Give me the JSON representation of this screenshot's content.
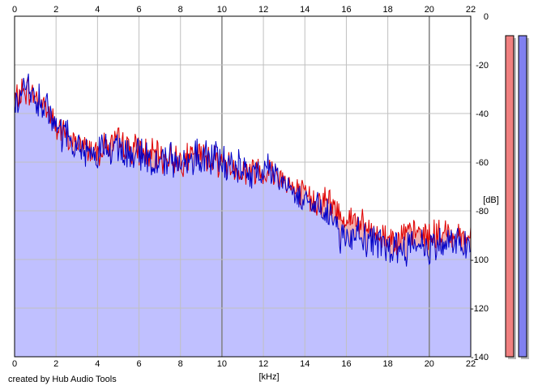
{
  "footer": {
    "credit": "created by Hub Audio Tools"
  },
  "colors": {
    "background": "#ffffff",
    "plot_border": "#000000",
    "grid_major": "#808080",
    "grid_minor": "#c0c0c0",
    "left_channel": "#e00000",
    "right_channel": "#0000c8",
    "left_fill": "#f0b0b0",
    "right_fill": "#c0c0ff",
    "left_meter": "#f08080",
    "right_meter": "#8080f0"
  },
  "chart_data": {
    "type": "area",
    "xlabel": "[kHz]",
    "ylabel": "[dB]",
    "xlim": [
      0,
      22
    ],
    "ylim": [
      -140,
      0
    ],
    "x_ticks": [
      "0",
      "2",
      "4",
      "6",
      "8",
      "10",
      "12",
      "14",
      "16",
      "18",
      "20",
      "22"
    ],
    "y_ticks": [
      "0",
      "-20",
      "-40",
      "-60",
      "-80",
      "-100",
      "-120",
      "-140"
    ],
    "grid": true,
    "series": [
      {
        "color": "#e00000",
        "points": [
          [
            0,
            -35
          ],
          [
            0.5,
            -30
          ],
          [
            1,
            -33
          ],
          [
            1.5,
            -37
          ],
          [
            2,
            -45
          ],
          [
            2.5,
            -50
          ],
          [
            3,
            -52
          ],
          [
            3.5,
            -54
          ],
          [
            4,
            -55
          ],
          [
            4.5,
            -53
          ],
          [
            5,
            -52
          ],
          [
            5.5,
            -54
          ],
          [
            6,
            -55
          ],
          [
            6.5,
            -57
          ],
          [
            7,
            -58
          ],
          [
            7.5,
            -58
          ],
          [
            8,
            -59
          ],
          [
            8.5,
            -58
          ],
          [
            9,
            -57
          ],
          [
            9.5,
            -58
          ],
          [
            10,
            -60
          ],
          [
            10.5,
            -62
          ],
          [
            11,
            -64
          ],
          [
            11.5,
            -63
          ],
          [
            12,
            -63
          ],
          [
            12.5,
            -64
          ],
          [
            13,
            -66
          ],
          [
            13.5,
            -72
          ],
          [
            14,
            -74
          ],
          [
            14.5,
            -76
          ],
          [
            15,
            -75
          ],
          [
            15.5,
            -80
          ],
          [
            16,
            -83
          ],
          [
            16.5,
            -84
          ],
          [
            17,
            -88
          ],
          [
            17.5,
            -90
          ],
          [
            18,
            -91
          ],
          [
            18.5,
            -91
          ],
          [
            19,
            -90
          ],
          [
            19.5,
            -89
          ],
          [
            20,
            -90
          ],
          [
            20.5,
            -90
          ],
          [
            21,
            -89
          ],
          [
            21.5,
            -90
          ],
          [
            22,
            -91
          ]
        ]
      },
      {
        "color": "#0000c8",
        "points": [
          [
            0,
            -37
          ],
          [
            0.5,
            -31
          ],
          [
            1,
            -34
          ],
          [
            1.5,
            -38
          ],
          [
            2,
            -46
          ],
          [
            2.5,
            -51
          ],
          [
            3,
            -53
          ],
          [
            3.5,
            -55
          ],
          [
            4,
            -56
          ],
          [
            4.5,
            -55
          ],
          [
            5,
            -54
          ],
          [
            5.5,
            -56
          ],
          [
            6,
            -57
          ],
          [
            6.5,
            -59
          ],
          [
            7,
            -60
          ],
          [
            7.5,
            -59
          ],
          [
            8,
            -60
          ],
          [
            8.5,
            -59
          ],
          [
            9,
            -58
          ],
          [
            9.5,
            -57
          ],
          [
            10,
            -60
          ],
          [
            10.5,
            -62
          ],
          [
            11,
            -63
          ],
          [
            11.5,
            -63
          ],
          [
            12,
            -64
          ],
          [
            12.5,
            -65
          ],
          [
            13,
            -68
          ],
          [
            13.5,
            -72
          ],
          [
            14,
            -75
          ],
          [
            14.5,
            -77
          ],
          [
            15,
            -78
          ],
          [
            15.5,
            -88
          ],
          [
            16,
            -90
          ],
          [
            16.5,
            -89
          ],
          [
            17,
            -92
          ],
          [
            17.5,
            -94
          ],
          [
            18,
            -95
          ],
          [
            18.5,
            -95
          ],
          [
            19,
            -94
          ],
          [
            19.5,
            -93
          ],
          [
            20,
            -95
          ],
          [
            20.5,
            -94
          ],
          [
            21,
            -93
          ],
          [
            21.5,
            -94
          ],
          [
            22,
            -95
          ]
        ]
      }
    ],
    "meters": [
      {
        "color": "#f08080",
        "level_db": 0
      },
      {
        "color": "#8080f0",
        "level_db": 0
      }
    ]
  }
}
